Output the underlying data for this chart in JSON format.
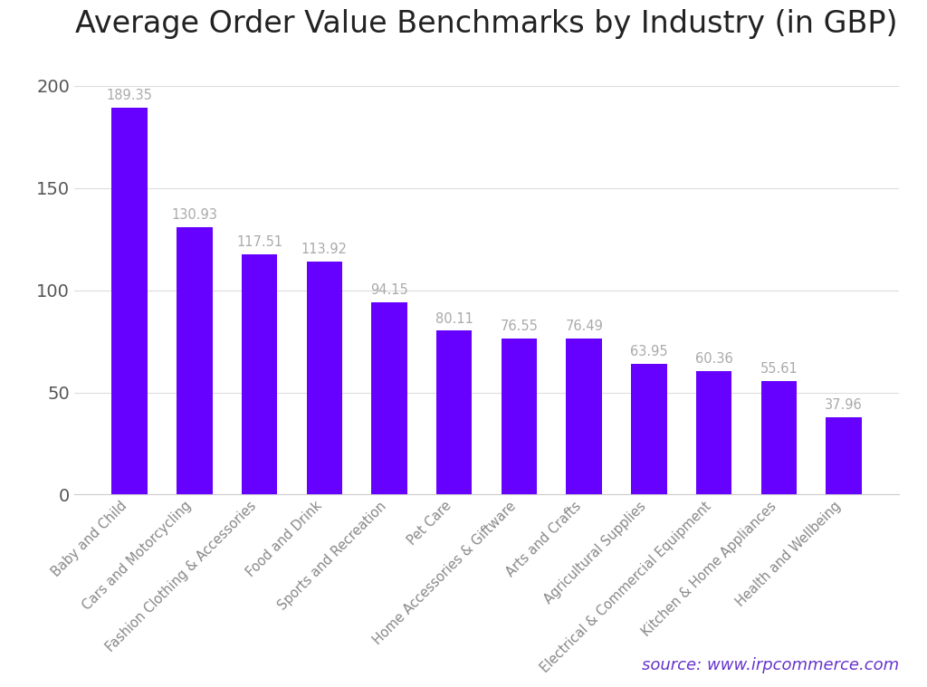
{
  "title": "Average Order Value Benchmarks by Industry (in GBP)",
  "categories": [
    "Baby and Child",
    "Cars and Motorcycling",
    "Fashion Clothing & Accessories",
    "Food and Drink",
    "Sports and Recreation",
    "Pet Care",
    "Home Accessories & Giftware",
    "Arts and Crafts",
    "Agricultural Supplies",
    "Electrical & Commercial Equipment",
    "Kitchen & Home Appliances",
    "Health and Wellbeing"
  ],
  "values": [
    189.35,
    130.93,
    117.51,
    113.92,
    94.15,
    80.11,
    76.55,
    76.49,
    63.95,
    60.36,
    55.61,
    37.96
  ],
  "bar_color": "#6600ff",
  "label_color": "#aaaaaa",
  "title_color": "#222222",
  "background_color": "#ffffff",
  "yticks": [
    0,
    50,
    100,
    150,
    200
  ],
  "ylim": [
    0,
    215
  ],
  "source_text": "source: www.irpcommerce.com",
  "source_color": "#6633cc",
  "grid_color": "#dddddd",
  "title_fontsize": 24,
  "label_fontsize": 10.5,
  "tick_fontsize": 14,
  "source_fontsize": 13,
  "bar_width": 0.55
}
